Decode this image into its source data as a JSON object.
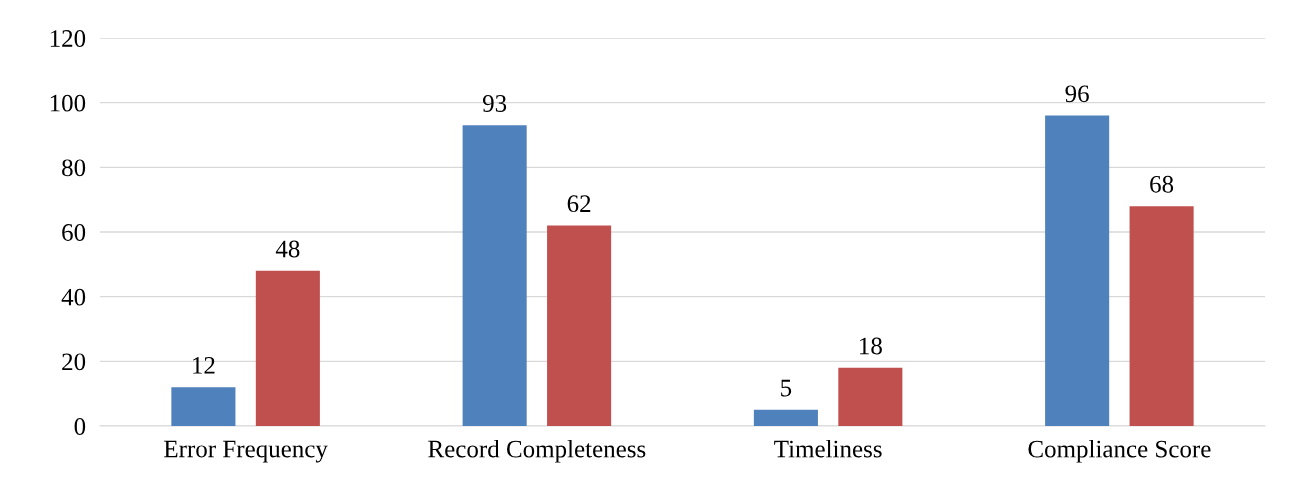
{
  "chart_data": {
    "type": "bar",
    "categories": [
      "Error Frequency",
      "Record Completeness",
      "Timeliness",
      "Compliance Score"
    ],
    "series": [
      {
        "color": "#4f81bd",
        "values": [
          12,
          93,
          5,
          96
        ]
      },
      {
        "color": "#c0504d",
        "values": [
          48,
          62,
          18,
          68
        ]
      }
    ],
    "ylim": [
      0,
      120
    ],
    "yticks": [
      0,
      20,
      40,
      60,
      80,
      100,
      120
    ],
    "grid": "y",
    "data_labels": true
  }
}
